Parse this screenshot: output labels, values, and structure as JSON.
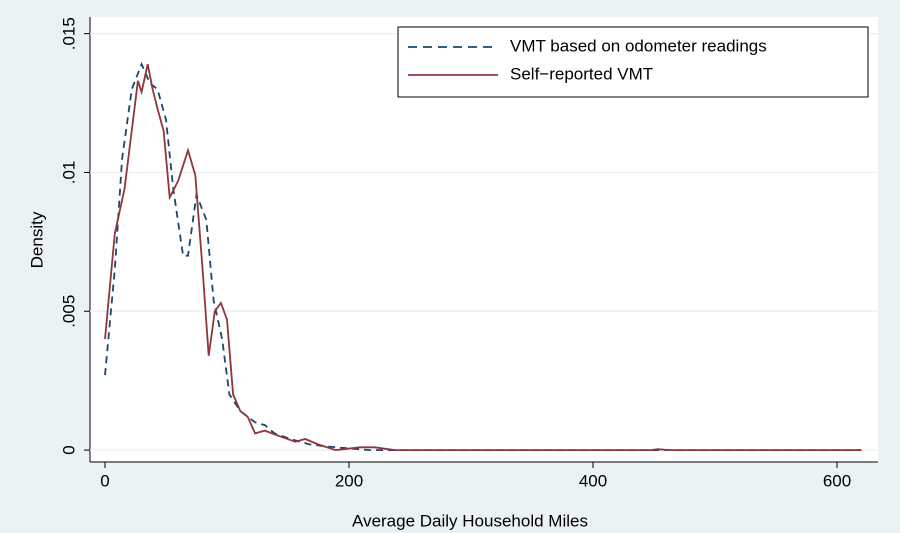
{
  "chart_data": {
    "type": "line",
    "x_label": "Average Daily Household Miles",
    "y_label": "Density",
    "xlim": [
      -12.3,
      633.6
    ],
    "ylim": [
      -0.00043,
      0.0156
    ],
    "xticks": [
      0,
      200,
      400,
      600
    ],
    "yticks": [
      0,
      {
        "value": 0.005,
        "label": ".005"
      },
      {
        "value": 0.01,
        "label": ".01"
      },
      {
        "value": 0.015,
        "label": ".015"
      }
    ],
    "grid": true,
    "legend_position": "top-right",
    "series": [
      {
        "name": "VMT based on odometer readings",
        "color": "#1a476f",
        "dash": true,
        "x": [
          0,
          8,
          14,
          22,
          30,
          37,
          43,
          50,
          56,
          64,
          68,
          75,
          83,
          89,
          96,
          102,
          111,
          123,
          131,
          139,
          152,
          168,
          189,
          217,
          283,
          620
        ],
        "values": [
          0.0027,
          0.0065,
          0.0105,
          0.013,
          0.0139,
          0.0132,
          0.013,
          0.0119,
          0.0094,
          0.007,
          0.007,
          0.0092,
          0.0083,
          0.0054,
          0.004,
          0.002,
          0.0014,
          0.001,
          0.0009,
          0.0006,
          0.0004,
          0.0002,
          0.0001,
          0,
          0,
          0
        ]
      },
      {
        "name": "Self−reported VMT",
        "color": "#90353b",
        "dash": false,
        "x": [
          0,
          8,
          16,
          23,
          27,
          30,
          35,
          39,
          43,
          48,
          53,
          60,
          68,
          74,
          80,
          85,
          90,
          95,
          100,
          105,
          111,
          117,
          123,
          131,
          143,
          156,
          164,
          175,
          189,
          209,
          221,
          238,
          283,
          373,
          447,
          453,
          463,
          620
        ],
        "values": [
          0.004,
          0.0078,
          0.0094,
          0.0119,
          0.0133,
          0.0129,
          0.0139,
          0.013,
          0.0123,
          0.0115,
          0.0091,
          0.0097,
          0.0108,
          0.0099,
          0.0065,
          0.0034,
          0.005,
          0.0053,
          0.0047,
          0.002,
          0.0014,
          0.0012,
          0.0006,
          0.0007,
          0.0005,
          0.0003,
          0.0004,
          0.0002,
          0,
          0.0001,
          0.0001,
          0,
          0,
          0,
          0,
          3e-05,
          0,
          0
        ]
      }
    ]
  }
}
